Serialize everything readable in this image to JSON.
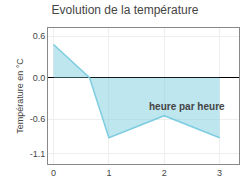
{
  "chart_data": {
    "type": "area",
    "title": "Evolution de la température",
    "xlabel": "heure par heure",
    "ylabel": "Température en °C",
    "x": [
      0,
      0.65,
      1.0,
      2.0,
      3.0
    ],
    "values": [
      0.48,
      0.0,
      -0.87,
      -0.55,
      -0.87
    ],
    "color": "#7ecde0",
    "xlim": [
      -0.1,
      3.35
    ],
    "xticks": [
      0,
      1,
      2,
      3
    ],
    "ylim": [
      -1.25,
      0.72
    ],
    "yticks": [
      0.6,
      {
        "value": 0,
        "label": "0.0"
      },
      -0.6,
      -1.1
    ],
    "grid": true
  }
}
